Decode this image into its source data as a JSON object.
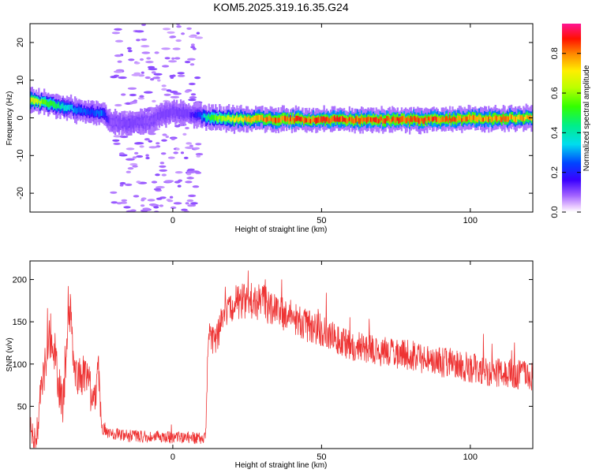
{
  "title": "KOM5.2025.319.16.35.G24",
  "chart_data": [
    {
      "type": "heatmap",
      "xlabel": "Height of straight line (km)",
      "ylabel": "Frequency (Hz)",
      "xlim": [
        -48,
        121
      ],
      "ylim": [
        -25,
        25
      ],
      "xticks": [
        0,
        50,
        100
      ],
      "yticks": [
        -20,
        -10,
        0,
        10,
        20
      ],
      "xtick_labels": [
        "0",
        "50",
        "100"
      ],
      "ytick_labels": [
        "-20",
        "-10",
        "0",
        "10",
        "20"
      ],
      "colorbar": {
        "label": "Normalized spectral amplitude",
        "range": [
          0,
          0.95
        ],
        "ticks": [
          0.0,
          0.2,
          0.4,
          0.6,
          0.8
        ],
        "tick_labels": [
          "0.0",
          "0.2",
          "0.4",
          "0.6",
          "0.8"
        ]
      },
      "ridge": {
        "description": "dominant spectral ridge frequency vs height",
        "x": [
          -48,
          -44,
          -40,
          -36,
          -32,
          -28,
          -24,
          -21,
          -16,
          -8,
          -4,
          0,
          5,
          9,
          12,
          20,
          30,
          40,
          50,
          60,
          70,
          80,
          90,
          100,
          110,
          121
        ],
        "frequency": [
          4.5,
          4.0,
          3.5,
          2.8,
          2.0,
          1.5,
          1.2,
          -1.0,
          -1.5,
          -1.0,
          1.0,
          1.5,
          1.0,
          0.5,
          0.0,
          -0.3,
          -0.3,
          -0.5,
          -0.5,
          -0.5,
          -0.5,
          -0.5,
          -0.4,
          -0.2,
          -0.1,
          0.0
        ],
        "amplitude": [
          0.75,
          0.6,
          0.5,
          0.4,
          0.3,
          0.25,
          0.3,
          0.1,
          0.12,
          0.1,
          0.12,
          0.12,
          0.12,
          0.25,
          0.55,
          0.75,
          0.85,
          0.9,
          0.9,
          0.9,
          0.9,
          0.9,
          0.9,
          0.88,
          0.85,
          0.8
        ]
      },
      "scatter_region": {
        "x_range": [
          -20,
          9
        ],
        "amplitude": 0.05
      }
    },
    {
      "type": "line",
      "xlabel": "Height of straight line (km)",
      "ylabel": "SNR (v/v)",
      "xlim": [
        -48,
        121
      ],
      "ylim": [
        0,
        222
      ],
      "xticks": [
        0,
        50,
        100
      ],
      "yticks": [
        50,
        100,
        150,
        200
      ],
      "xtick_labels": [
        "0",
        "50",
        "100"
      ],
      "ytick_labels": [
        "50",
        "100",
        "150",
        "200"
      ],
      "series": [
        {
          "name": "SNR",
          "color": "#ee3333",
          "x": [
            -48,
            -46,
            -44,
            -42,
            -40,
            -38,
            -37,
            -35,
            -33,
            -31,
            -29,
            -27,
            -25,
            -24,
            -22,
            -20,
            -15,
            -10,
            -5,
            0,
            5,
            8,
            11,
            12,
            14,
            18,
            22,
            26,
            30,
            35,
            40,
            45,
            50,
            55,
            60,
            65,
            70,
            75,
            80,
            85,
            90,
            95,
            100,
            105,
            110,
            115,
            121
          ],
          "y": [
            25,
            10,
            75,
            115,
            110,
            70,
            45,
            175,
            100,
            80,
            95,
            55,
            90,
            25,
            20,
            18,
            15,
            14,
            14,
            13,
            13,
            12,
            12,
            140,
            125,
            165,
            175,
            175,
            172,
            165,
            155,
            145,
            140,
            130,
            122,
            120,
            115,
            112,
            110,
            105,
            102,
            100,
            96,
            93,
            90,
            88,
            86
          ],
          "noise_amplitude": [
            20,
            20,
            25,
            25,
            25,
            25,
            25,
            30,
            25,
            25,
            25,
            25,
            25,
            12,
            8,
            7,
            7,
            7,
            7,
            7,
            7,
            7,
            7,
            15,
            18,
            20,
            22,
            22,
            22,
            22,
            20,
            20,
            20,
            18,
            18,
            18,
            18,
            18,
            18,
            18,
            18,
            18,
            18,
            18,
            18,
            18,
            18
          ]
        }
      ]
    }
  ]
}
